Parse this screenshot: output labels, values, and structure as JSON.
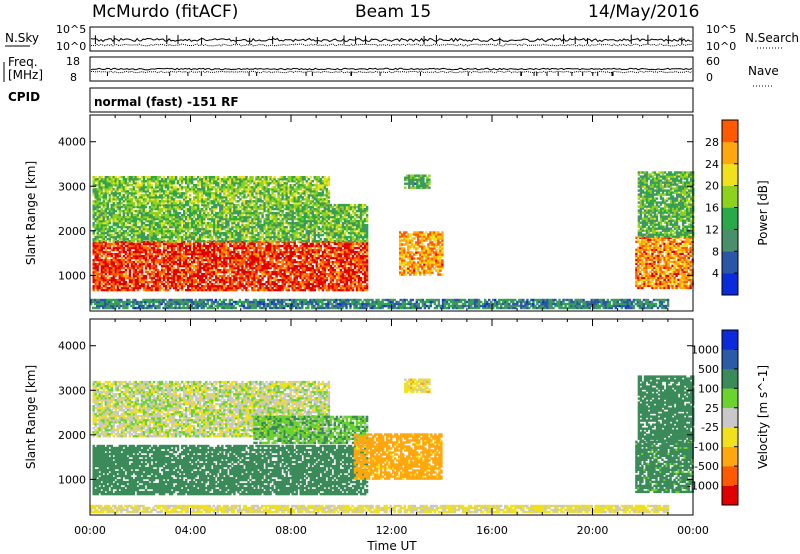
{
  "header": {
    "station": "McMurdo (fitACF)",
    "beam": "Beam 15",
    "date": "14/May/2016"
  },
  "strip_panels": {
    "nsky_label": "N.Sky",
    "nsearch_label": "N.Search",
    "freq_label_line1": "Freq.",
    "freq_label_line2": "[MHz]",
    "nave_label": "Nave",
    "cpid_label": "CPID",
    "cpid_text": "normal (fast) -151 RF",
    "noise_ticks_left": [
      "10^5",
      "10^0"
    ],
    "noise_ticks_right": [
      "10^5",
      "10^0"
    ],
    "freq_ticks_left": [
      "18",
      "8"
    ],
    "nave_ticks_right": [
      "60",
      "0"
    ]
  },
  "colors": {
    "power_scale": [
      "#0a2bd9",
      "#2b56a8",
      "#4a8f6c",
      "#2aa84a",
      "#8fd21e",
      "#f0e11c",
      "#ffa70f",
      "#ff5a00",
      "#e00000"
    ],
    "velocity_scale": [
      "#e00000",
      "#ff5a00",
      "#ffa70f",
      "#f0e11c",
      "#c8c8c8",
      "#6cd22e",
      "#3a8a5a",
      "#2b5aa8",
      "#0a2bd9"
    ]
  },
  "chart_data": [
    {
      "type": "heatmap",
      "name": "power-panel",
      "xlabel": "Time UT",
      "ylabel": "Slant Range [km]",
      "colorbar_label": "Power [dB]",
      "x_ticks": [
        "00:00",
        "04:00",
        "08:00",
        "12:00",
        "16:00",
        "20:00",
        "00:00"
      ],
      "xlim_hours": [
        0,
        24
      ],
      "ylim_km": [
        200,
        4600
      ],
      "y_ticks": [
        1000,
        2000,
        3000,
        4000
      ],
      "colorbar_ticks": [
        "4",
        "8",
        "12",
        "16",
        "20",
        "24",
        "28"
      ],
      "colorbar_range_db": [
        0,
        30
      ],
      "regions": [
        {
          "t0": 0.1,
          "t1": 11.0,
          "r0": 650,
          "r1": 1750,
          "value_db": 27
        },
        {
          "t0": 0.1,
          "t1": 11.0,
          "r0": 1750,
          "r1": 2600,
          "value_db": 13
        },
        {
          "t0": 0.1,
          "t1": 9.5,
          "r0": 2600,
          "r1": 3200,
          "value_db": 14
        },
        {
          "t0": 12.3,
          "t1": 14.0,
          "r0": 1000,
          "r1": 1950,
          "value_db": 22
        },
        {
          "t0": 12.5,
          "t1": 13.5,
          "r0": 2950,
          "r1": 3250,
          "value_db": 11
        },
        {
          "t0": 21.7,
          "t1": 24.0,
          "r0": 700,
          "r1": 1850,
          "value_db": 23
        },
        {
          "t0": 21.8,
          "t1": 24.0,
          "r0": 1850,
          "r1": 3300,
          "value_db": 12
        },
        {
          "t0": 0.0,
          "t1": 23.0,
          "r0": 250,
          "r1": 450,
          "value_db": 8
        }
      ]
    },
    {
      "type": "heatmap",
      "name": "velocity-panel",
      "xlabel": "Time UT",
      "ylabel": "Slant Range [km]",
      "colorbar_label": "Velocity [m s^-1]",
      "x_ticks": [
        "00:00",
        "04:00",
        "08:00",
        "12:00",
        "16:00",
        "20:00",
        "00:00"
      ],
      "xlim_hours": [
        0,
        24
      ],
      "ylim_km": [
        200,
        4600
      ],
      "y_ticks": [
        1000,
        2000,
        3000,
        4000
      ],
      "colorbar_ticks": [
        "-1000",
        "-500",
        "-100",
        "-25",
        "25",
        "100",
        "500",
        "1000"
      ],
      "regions": [
        {
          "t0": 0.1,
          "t1": 11.0,
          "r0": 650,
          "r1": 1750,
          "value_ms": 200
        },
        {
          "t0": 0.1,
          "t1": 9.5,
          "r0": 1950,
          "r1": 3200,
          "value_ms": 0
        },
        {
          "t0": 6.5,
          "t1": 11.0,
          "r0": 1800,
          "r1": 2400,
          "value_ms": 80
        },
        {
          "t0": 10.5,
          "t1": 14.0,
          "r0": 1000,
          "r1": 2000,
          "value_ms": -150
        },
        {
          "t0": 12.5,
          "t1": 13.5,
          "r0": 2950,
          "r1": 3250,
          "value_ms": -60
        },
        {
          "t0": 21.7,
          "t1": 24.0,
          "r0": 700,
          "r1": 1850,
          "value_ms": 150
        },
        {
          "t0": 21.8,
          "t1": 24.0,
          "r0": 1850,
          "r1": 3300,
          "value_ms": 400
        },
        {
          "t0": 0.0,
          "t1": 23.0,
          "r0": 250,
          "r1": 420,
          "value_ms": -40
        }
      ]
    }
  ]
}
